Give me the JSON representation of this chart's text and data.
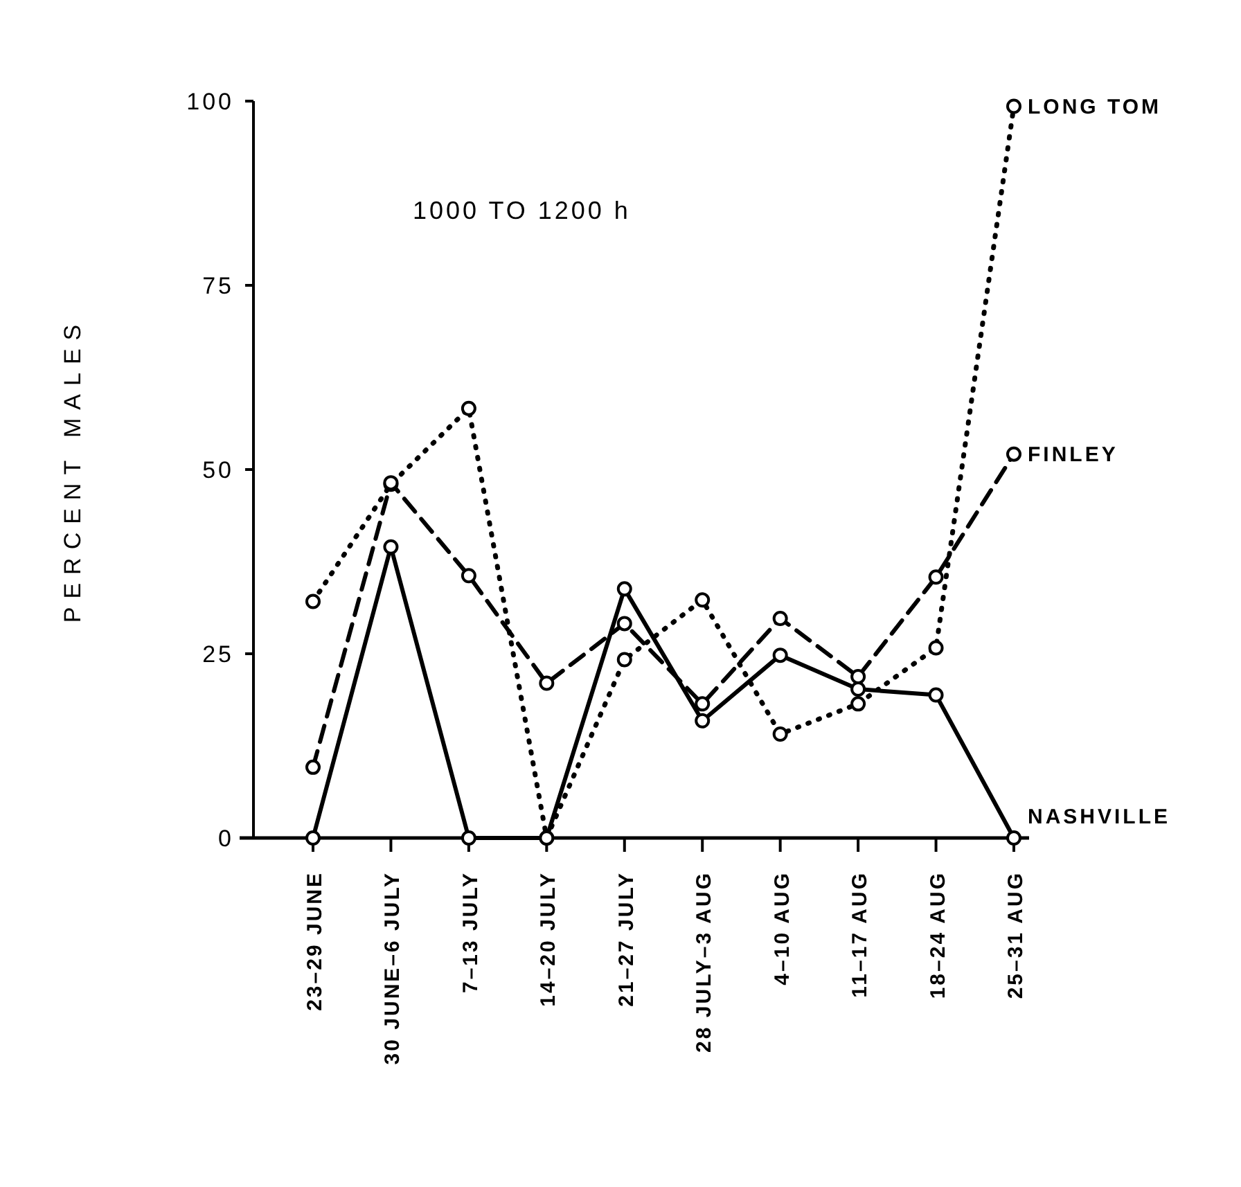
{
  "chart_data": {
    "type": "line",
    "ylabel": "PERCENT MALES",
    "annotations": [
      "1000 TO 1200 h"
    ],
    "categories": [
      "23–29 JUNE",
      "30 JUNE–6 JULY",
      "7–13 JULY",
      "14–20 JULY",
      "21–27 JULY",
      "28 JULY–3 AUG",
      "4–10 AUG",
      "11–17 AUG",
      "18–24 AUG",
      "25–31 AUG"
    ],
    "ylim": [
      0,
      100
    ],
    "yticks": [
      0,
      25,
      50,
      75,
      100
    ],
    "marker": "circle",
    "series": [
      {
        "name": "LONG TOM",
        "color": "#000000",
        "line_style": "dotted",
        "values": [
          32.1,
          48,
          58.3,
          0,
          24.2,
          32.3,
          14.1,
          18.2,
          25.8,
          99.3
        ]
      },
      {
        "name": "FINLEY",
        "color": "#000000",
        "line_style": "dashed",
        "values": [
          9.6,
          48.2,
          35.6,
          21,
          29.1,
          18.2,
          29.8,
          21.9,
          35.4,
          52.1
        ]
      },
      {
        "name": "NASHVILLE",
        "color": "#000000",
        "line_style": "solid",
        "values": [
          0,
          39.5,
          0,
          0,
          33.8,
          15.9,
          24.8,
          20.2,
          19.4,
          0
        ]
      }
    ]
  }
}
